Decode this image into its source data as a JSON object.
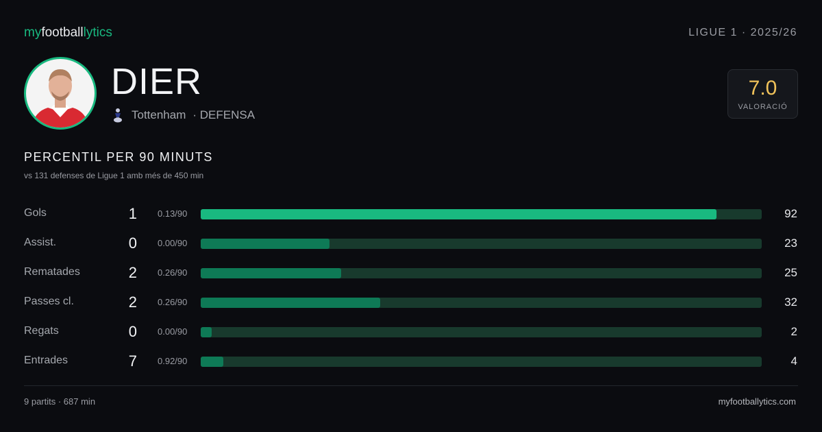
{
  "header": {
    "brand": [
      "my",
      "football",
      "lytics"
    ],
    "league": "LIGUE 1 · 2025/26"
  },
  "player": {
    "name": "DIER",
    "team": "Tottenham",
    "position": "· DEFENSA"
  },
  "rating": {
    "value": "7.0",
    "label": "VALORACIÓ"
  },
  "section": {
    "title": "PERCENTIL PER 90 MINUTS",
    "subtitle": "vs 131 defenses de Ligue 1 amb més de 450 min"
  },
  "scale": [
    0,
    100
  ],
  "rows": [
    {
      "label": "Gols",
      "total": 1,
      "per90": "0.13/90",
      "percentile": 92,
      "color": "#19b980"
    },
    {
      "label": "Assist.",
      "total": 0,
      "per90": "0.00/90",
      "percentile": 23,
      "color": "#0e7a56"
    },
    {
      "label": "Rematades",
      "total": 2,
      "per90": "0.26/90",
      "percentile": 25,
      "color": "#0e7a56"
    },
    {
      "label": "Passes cl.",
      "total": 2,
      "per90": "0.26/90",
      "percentile": 32,
      "color": "#0e7a56"
    },
    {
      "label": "Regats",
      "total": 0,
      "per90": "0.00/90",
      "percentile": 2,
      "color": "#0e7a56"
    },
    {
      "label": "Entrades",
      "total": 7,
      "per90": "0.92/90",
      "percentile": 4,
      "color": "#0e7a56"
    }
  ],
  "footer": {
    "left": "9 partits · 687 min",
    "right": "myfootballytics.com"
  }
}
